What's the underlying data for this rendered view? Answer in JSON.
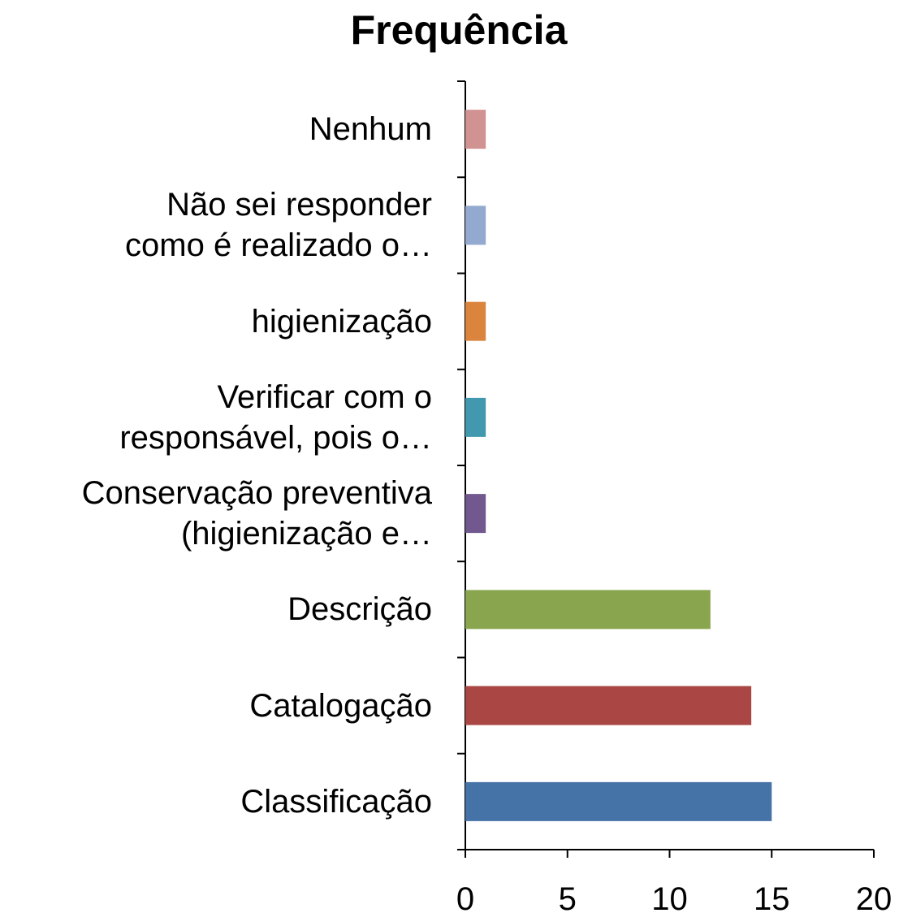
{
  "chart_data": {
    "type": "bar",
    "orientation": "horizontal",
    "title": "Frequência",
    "categories": [
      "Classificação",
      "Catalogação",
      "Descrição",
      "Conservação preventiva\n(higienização e…",
      "Verificar com o\nresponsável, pois o…",
      "higienização",
      "Não sei responder\ncomo é realizado o…",
      "Nenhum"
    ],
    "values": [
      15,
      14,
      12,
      1,
      1,
      1,
      1,
      1
    ],
    "colors": [
      "#4572a7",
      "#aa4643",
      "#89a54e",
      "#71588f",
      "#4198af",
      "#db843d",
      "#93a9cf",
      "#d19392"
    ],
    "xlim": [
      0,
      20
    ],
    "xticks": [
      0,
      5,
      10,
      15,
      20
    ]
  }
}
